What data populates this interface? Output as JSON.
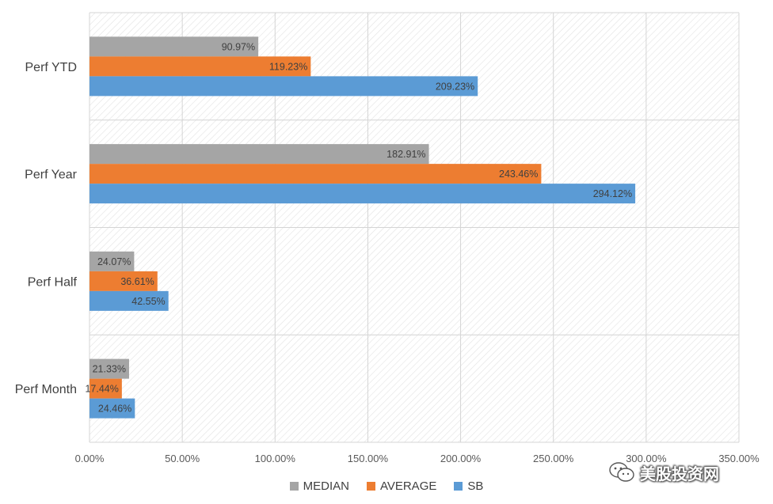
{
  "chart_data": {
    "type": "bar",
    "orientation": "horizontal",
    "categories": [
      "Perf YTD",
      "Perf Year",
      "Perf Half",
      "Perf Month"
    ],
    "series": [
      {
        "name": "MEDIAN",
        "color": "#a5a5a5",
        "values": [
          90.97,
          182.91,
          24.07,
          21.33
        ],
        "labels": [
          "90.97%",
          "182.91%",
          "24.07%",
          "21.33%"
        ]
      },
      {
        "name": "AVERAGE",
        "color": "#ed7d31",
        "values": [
          119.23,
          243.46,
          36.61,
          17.44
        ],
        "labels": [
          "119.23%",
          "243.46%",
          "36.61%",
          "17.44%"
        ]
      },
      {
        "name": "SB",
        "color": "#5b9bd5",
        "values": [
          209.23,
          294.12,
          42.55,
          24.46
        ],
        "labels": [
          "209.23%",
          "294.12%",
          "42.55%",
          "24.46%"
        ]
      }
    ],
    "xlim": [
      0,
      350
    ],
    "x_ticks": [
      "0.00%",
      "50.00%",
      "100.00%",
      "150.00%",
      "200.00%",
      "250.00%",
      "300.00%",
      "350.00%"
    ],
    "grid": true,
    "legend_position": "bottom",
    "title": "",
    "xlabel": "",
    "ylabel": ""
  },
  "watermark": {
    "text": "美股投资网",
    "icon": "wechat-icon"
  }
}
